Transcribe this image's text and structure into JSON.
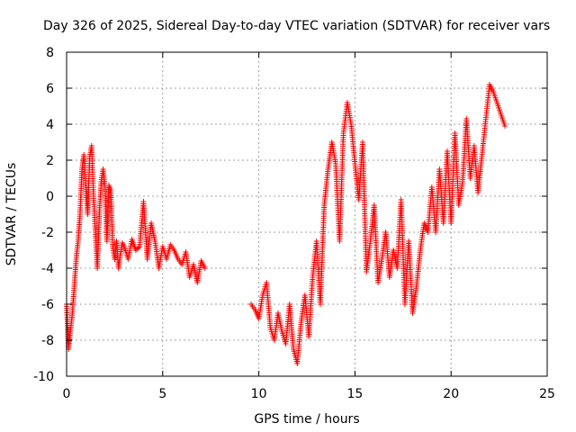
{
  "chart_data": {
    "type": "scatter",
    "title": "Day 326 of 2025, Sidereal Day-to-day VTEC variation (SDTVAR) for receiver vars",
    "xlabel": "GPS time / hours",
    "ylabel": "SDTVAR / TECUs",
    "xlim": [
      0,
      25
    ],
    "ylim": [
      -10,
      8
    ],
    "xticks": [
      "0",
      "5",
      "10",
      "15",
      "20",
      "25"
    ],
    "yticks": [
      "-10",
      "-8",
      "-6",
      "-4",
      "-2",
      "0",
      "2",
      "4",
      "6",
      "8"
    ],
    "grid": true,
    "marker": "+",
    "series": [
      {
        "name": "vars",
        "color": "#ff0000",
        "x": [
          0.0,
          0.1,
          0.2,
          0.3,
          0.4,
          0.5,
          0.6,
          0.7,
          0.8,
          0.9,
          1.0,
          1.1,
          1.2,
          1.3,
          1.4,
          1.5,
          1.6,
          1.7,
          1.8,
          1.9,
          2.0,
          2.1,
          2.2,
          2.3,
          2.4,
          2.5,
          2.6,
          2.7,
          2.8,
          2.9,
          3.0,
          3.2,
          3.4,
          3.6,
          3.8,
          4.0,
          4.2,
          4.4,
          4.6,
          4.8,
          5.0,
          5.2,
          5.4,
          5.6,
          5.8,
          6.0,
          6.2,
          6.4,
          6.6,
          6.8,
          7.0,
          7.2,
          9.6,
          9.8,
          10.0,
          10.2,
          10.4,
          10.6,
          10.8,
          11.0,
          11.2,
          11.4,
          11.6,
          11.8,
          12.0,
          12.2,
          12.4,
          12.6,
          12.8,
          13.0,
          13.2,
          13.4,
          13.6,
          13.8,
          14.0,
          14.2,
          14.4,
          14.6,
          14.8,
          15.0,
          15.2,
          15.4,
          15.6,
          15.8,
          16.0,
          16.2,
          16.4,
          16.6,
          16.8,
          17.0,
          17.2,
          17.4,
          17.6,
          17.8,
          18.0,
          18.2,
          18.4,
          18.6,
          18.8,
          19.0,
          19.2,
          19.4,
          19.6,
          19.8,
          20.0,
          20.2,
          20.4,
          20.6,
          20.8,
          21.0,
          21.2,
          21.4,
          21.6,
          22.0,
          22.2,
          22.8
        ],
        "y": [
          -6.0,
          -8.5,
          -7.5,
          -6.5,
          -5.0,
          -3.5,
          -2.5,
          -1.0,
          1.5,
          2.3,
          0.5,
          -1.0,
          2.2,
          2.8,
          0.0,
          -2.0,
          -4.0,
          -1.0,
          0.8,
          1.5,
          0.5,
          -2.5,
          0.6,
          0.3,
          -2.8,
          -3.5,
          -2.5,
          -4.0,
          -3.2,
          -2.6,
          -2.8,
          -3.5,
          -2.4,
          -3.0,
          -2.8,
          -0.3,
          -3.5,
          -1.5,
          -2.5,
          -4.0,
          -2.8,
          -3.5,
          -2.7,
          -3.0,
          -3.5,
          -3.8,
          -3.1,
          -4.5,
          -3.8,
          -4.8,
          -3.6,
          -4.0,
          -6.0,
          -6.3,
          -6.8,
          -5.5,
          -4.8,
          -7.3,
          -8.0,
          -6.5,
          -7.5,
          -8.2,
          -6.0,
          -8.5,
          -9.3,
          -7.0,
          -5.5,
          -7.8,
          -4.5,
          -2.5,
          -6.0,
          -0.5,
          1.5,
          3.0,
          1.8,
          -2.5,
          3.5,
          5.2,
          4.0,
          1.8,
          -0.2,
          3.0,
          -4.2,
          -2.5,
          -0.5,
          -4.8,
          -3.5,
          -2.0,
          -4.5,
          -3.0,
          -4.0,
          -0.2,
          -6.0,
          -2.5,
          -6.5,
          -5.0,
          -3.0,
          -1.5,
          -2.0,
          0.5,
          -2.0,
          1.5,
          -1.5,
          2.5,
          -1.5,
          3.5,
          -0.5,
          0.8,
          4.3,
          1.0,
          2.8,
          0.2,
          2.2,
          6.2,
          5.8,
          3.9
        ]
      }
    ]
  }
}
